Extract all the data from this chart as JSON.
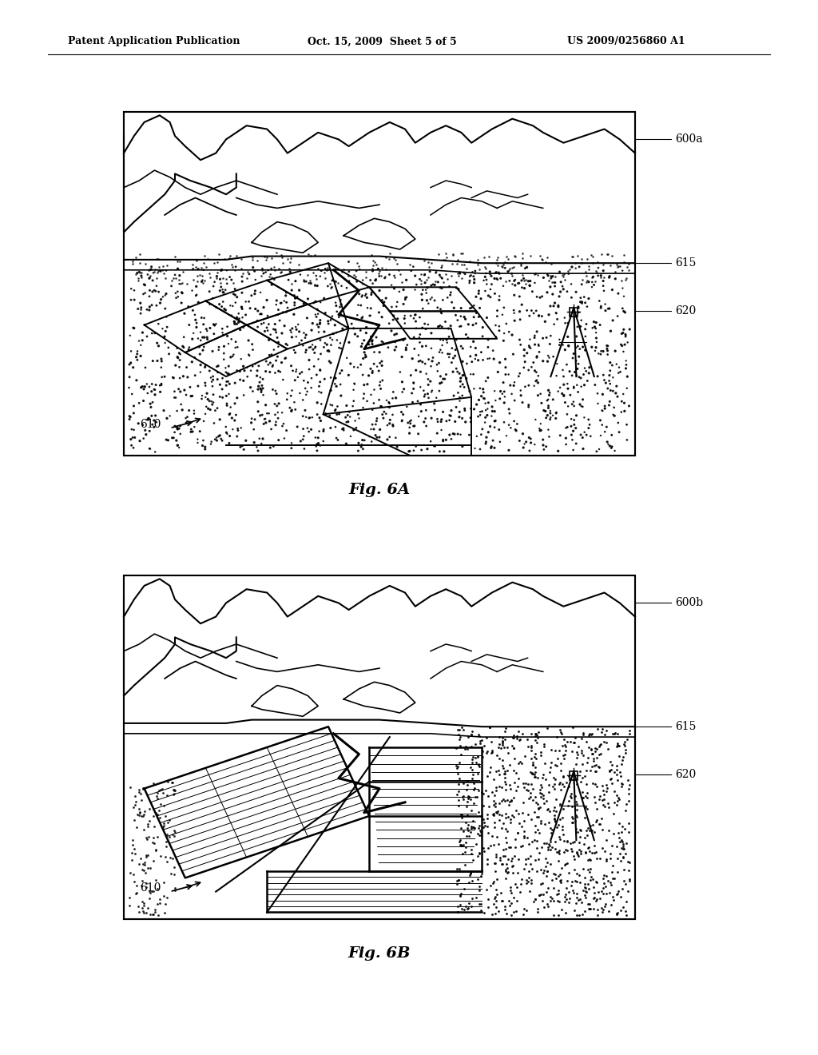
{
  "bg_color": "#ffffff",
  "header_left": "Patent Application Publication",
  "header_center": "Oct. 15, 2009  Sheet 5 of 5",
  "header_right": "US 2009/0256860 A1",
  "fig6a_label": "Fig. 6A",
  "fig6b_label": "Fig. 6B",
  "label_600a": "600a",
  "label_600b": "600b",
  "label_615": "615",
  "label_620": "620",
  "label_610": "610",
  "box6a": [
    155,
    140,
    640,
    430
  ],
  "box6b": [
    155,
    720,
    640,
    430
  ]
}
